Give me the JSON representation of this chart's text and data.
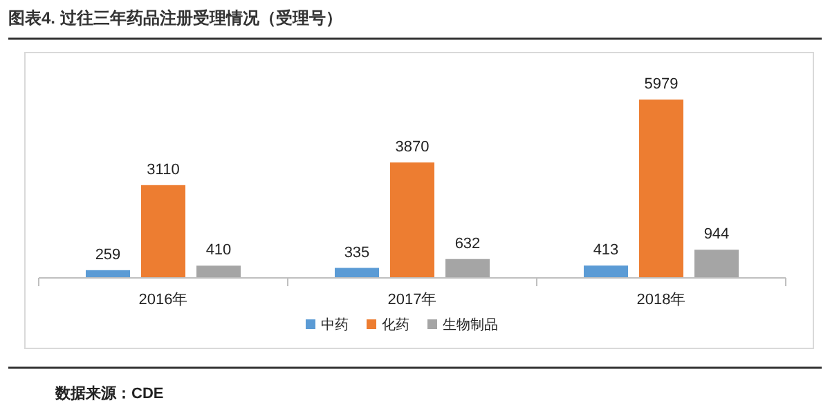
{
  "chart_data": {
    "type": "bar",
    "title": "图表4.   过往三年药品注册受理情况（受理号）",
    "categories": [
      "2016年",
      "2017年",
      "2018年"
    ],
    "series": [
      {
        "name": "中药",
        "color": "#5b9bd5",
        "values": [
          259,
          335,
          413
        ]
      },
      {
        "name": "化药",
        "color": "#ed7d31",
        "values": [
          3110,
          3870,
          5979
        ]
      },
      {
        "name": "生物制品",
        "color": "#a5a5a5",
        "values": [
          410,
          632,
          944
        ]
      }
    ],
    "data_labels": true,
    "legend": "bottom",
    "tick_labels": "x",
    "annotations": [
      "数据来源：CDE"
    ]
  }
}
